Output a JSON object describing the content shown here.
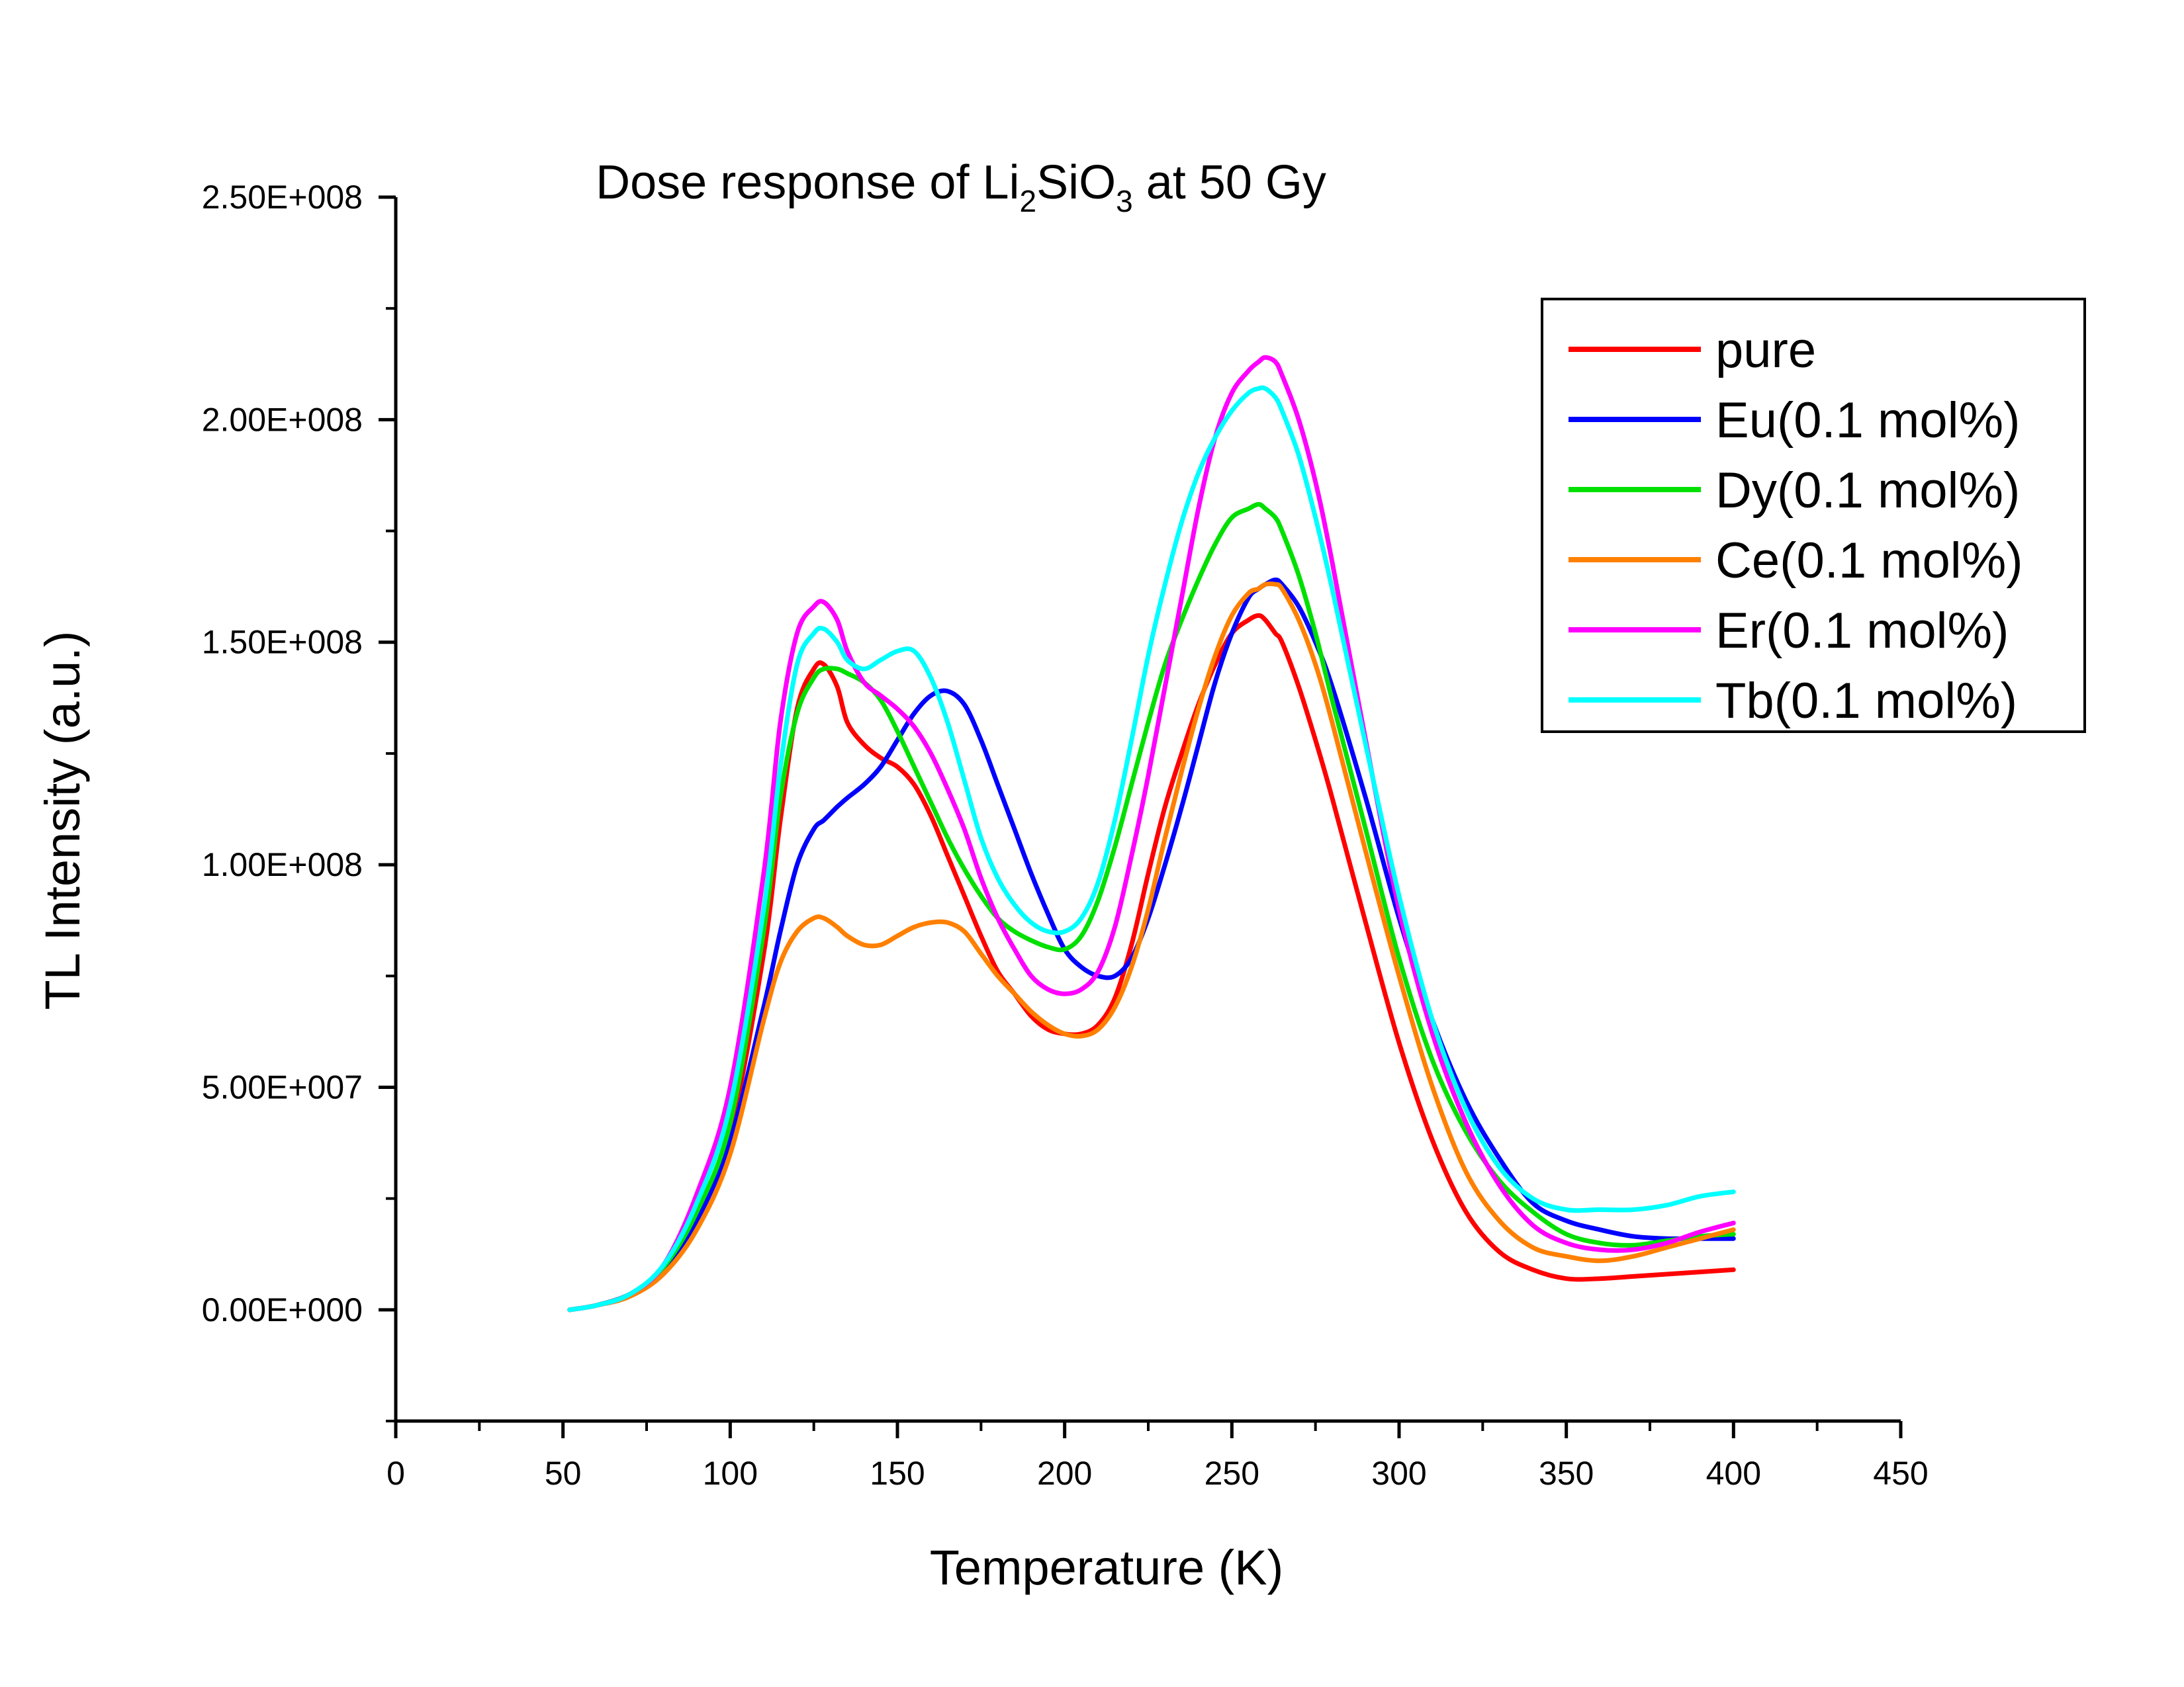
{
  "chart_data": {
    "type": "line",
    "title": "Dose response of Li",
    "title_parts": {
      "prefix": "Dose response of Li",
      "sub1": "2",
      "mid": "SiO",
      "sub2": "3",
      "suffix": " at 50 Gy"
    },
    "xlabel": "Temperature (K)",
    "ylabel": "TL Intensity (a.u.)",
    "xlim": [
      0,
      450
    ],
    "ylim": [
      -25000000,
      250000000
    ],
    "x_ticks": [
      0,
      50,
      100,
      150,
      200,
      250,
      300,
      350,
      400,
      450
    ],
    "x_tick_labels": [
      "0",
      "50",
      "100",
      "150",
      "200",
      "250",
      "300",
      "350",
      "400",
      "450"
    ],
    "y_ticks": [
      0,
      50000000,
      100000000,
      150000000,
      200000000,
      250000000
    ],
    "y_tick_labels": [
      "0.00E+000",
      "5.00E+007",
      "1.00E+008",
      "1.50E+008",
      "2.00E+008",
      "2.50E+008"
    ],
    "grid": false,
    "legend_position": "top-right",
    "x": [
      52,
      60,
      70,
      80,
      90,
      100,
      110,
      115,
      120,
      125,
      128,
      132,
      135,
      140,
      145,
      150,
      155,
      160,
      165,
      170,
      175,
      180,
      185,
      190,
      195,
      200,
      205,
      210,
      215,
      220,
      225,
      230,
      235,
      240,
      245,
      250,
      255,
      258,
      260,
      263,
      265,
      270,
      275,
      280,
      290,
      300,
      310,
      320,
      330,
      340,
      350,
      360,
      370,
      380,
      390,
      400
    ],
    "series": [
      {
        "name": "pure",
        "color": "#ff0000",
        "values": [
          0,
          1000000,
          3500000,
          9000000,
          22000000,
          40000000,
          80000000,
          110000000,
          135000000,
          144000000,
          145000000,
          140000000,
          132000000,
          127000000,
          124000000,
          122000000,
          118000000,
          111000000,
          102000000,
          93000000,
          84000000,
          76000000,
          71000000,
          66000000,
          63000000,
          62000000,
          62000000,
          64000000,
          70000000,
          82000000,
          98000000,
          113000000,
          125000000,
          136000000,
          145000000,
          152000000,
          155000000,
          156000000,
          155000000,
          152000000,
          150000000,
          140000000,
          128000000,
          115000000,
          87000000,
          60000000,
          38000000,
          22000000,
          13000000,
          9000000,
          7000000,
          7000000,
          7500000,
          8000000,
          8500000,
          9000000
        ]
      },
      {
        "name": "Eu(0.1 mol%)",
        "color": "#0000ff",
        "values": [
          0,
          1000000,
          3500000,
          9000000,
          20000000,
          38000000,
          68000000,
          85000000,
          100000000,
          108000000,
          110000000,
          113000000,
          115000000,
          118000000,
          122000000,
          128000000,
          134000000,
          138000000,
          139000000,
          136000000,
          128000000,
          118000000,
          108000000,
          98000000,
          89000000,
          81000000,
          77000000,
          75000000,
          75000000,
          79000000,
          88000000,
          100000000,
          113000000,
          127000000,
          141000000,
          152000000,
          160000000,
          162000000,
          163000000,
          164000000,
          163000000,
          158000000,
          150000000,
          140000000,
          115000000,
          88000000,
          65000000,
          47000000,
          34000000,
          24000000,
          20000000,
          18000000,
          16500000,
          16000000,
          16000000,
          16000000
        ]
      },
      {
        "name": "Dy(0.1 mol%)",
        "color": "#00e000",
        "values": [
          0,
          1000000,
          3500000,
          9500000,
          22000000,
          42000000,
          85000000,
          115000000,
          134000000,
          142000000,
          144000000,
          144000000,
          143000000,
          141000000,
          137000000,
          130000000,
          122000000,
          114000000,
          106000000,
          99000000,
          93000000,
          88000000,
          85000000,
          83000000,
          81500000,
          81000000,
          84000000,
          92000000,
          104000000,
          118000000,
          132000000,
          145000000,
          155000000,
          164000000,
          172000000,
          178000000,
          180000000,
          181000000,
          180000000,
          178000000,
          175000000,
          165000000,
          152000000,
          137000000,
          108000000,
          79000000,
          56000000,
          40000000,
          29000000,
          22000000,
          17000000,
          15000000,
          14500000,
          15500000,
          16500000,
          17000000
        ]
      },
      {
        "name": "Ce(0.1 mol%)",
        "color": "#ff8000",
        "values": [
          0,
          1000000,
          3000000,
          8000000,
          18000000,
          35000000,
          65000000,
          78000000,
          85000000,
          88000000,
          88000000,
          86000000,
          84000000,
          82000000,
          82000000,
          84000000,
          86000000,
          87000000,
          87000000,
          85000000,
          80000000,
          75000000,
          71000000,
          67000000,
          64000000,
          62000000,
          61500000,
          63000000,
          68000000,
          77000000,
          90000000,
          106000000,
          121000000,
          135000000,
          147000000,
          156000000,
          161000000,
          162000000,
          163000000,
          163000000,
          162000000,
          155000000,
          145000000,
          132000000,
          103000000,
          75000000,
          50000000,
          31000000,
          20000000,
          14000000,
          12000000,
          11000000,
          12000000,
          14000000,
          16000000,
          18000000
        ]
      },
      {
        "name": "Er(0.1 mol%)",
        "color": "#ff00ff",
        "values": [
          0,
          1000000,
          3500000,
          10000000,
          26000000,
          50000000,
          98000000,
          132000000,
          152000000,
          158000000,
          159000000,
          155000000,
          148000000,
          141000000,
          138000000,
          135000000,
          131000000,
          125000000,
          117000000,
          108000000,
          97000000,
          88000000,
          81000000,
          75000000,
          72000000,
          71000000,
          72000000,
          76000000,
          86000000,
          102000000,
          120000000,
          140000000,
          160000000,
          180000000,
          196000000,
          206000000,
          211000000,
          213000000,
          214000000,
          213000000,
          210000000,
          200000000,
          186000000,
          168000000,
          128000000,
          90000000,
          62000000,
          42000000,
          28000000,
          19000000,
          15000000,
          13500000,
          13500000,
          15000000,
          17500000,
          19500000
        ]
      },
      {
        "name": "Tb(0.1 mol%)",
        "color": "#00ffff",
        "values": [
          0,
          1000000,
          3500000,
          10000000,
          24000000,
          46000000,
          90000000,
          122000000,
          145000000,
          152000000,
          153000000,
          150000000,
          146000000,
          144000000,
          146000000,
          148000000,
          148000000,
          142000000,
          132000000,
          119000000,
          106000000,
          97000000,
          91000000,
          87000000,
          85000000,
          85000000,
          88000000,
          96000000,
          110000000,
          128000000,
          147000000,
          163000000,
          177000000,
          188000000,
          196000000,
          202000000,
          206000000,
          207000000,
          207000000,
          205000000,
          202000000,
          192000000,
          178000000,
          162000000,
          127000000,
          93000000,
          65000000,
          45000000,
          32000000,
          25000000,
          22500000,
          22500000,
          22500000,
          23500000,
          25500000,
          26500000
        ]
      }
    ]
  }
}
